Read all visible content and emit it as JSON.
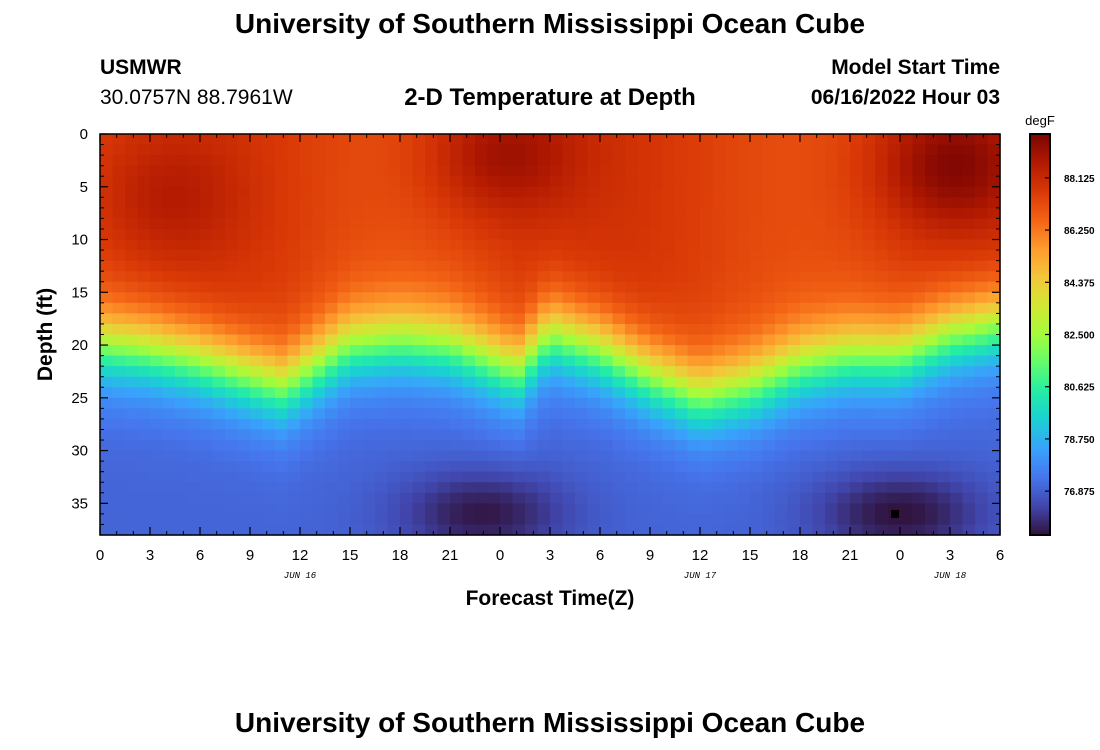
{
  "page": {
    "title": "University of Southern Mississippi Ocean Cube",
    "station": "USMWR",
    "coords": "30.0757N  88.7961W",
    "subtitle": "2-D Temperature at Depth",
    "model_start_label": "Model Start Time",
    "model_start_value": "06/16/2022 Hour 03",
    "bottom_title": "University of Southern Mississippi Ocean Cube"
  },
  "chart_data": {
    "type": "heatmap",
    "title": "2-D Temperature at Depth",
    "xlabel": "Forecast Time(Z)",
    "ylabel": "Depth (ft)",
    "x_range_hours": [
      0,
      54
    ],
    "x_tick_labels": [
      "0",
      "3",
      "6",
      "9",
      "12",
      "15",
      "18",
      "21",
      "0",
      "3",
      "6",
      "9",
      "12",
      "15",
      "18",
      "21",
      "0",
      "3",
      "6"
    ],
    "date_labels": [
      {
        "label": "JUN 16",
        "hour": 12
      },
      {
        "label": "JUN 17",
        "hour": 36
      },
      {
        "label": "JUN 18",
        "hour": 51
      }
    ],
    "ylim": [
      0,
      38
    ],
    "y_ticks": [
      0,
      5,
      10,
      15,
      20,
      25,
      30,
      35
    ],
    "colorbar": {
      "unit": "degF",
      "range": [
        75.3,
        89.7
      ],
      "ticks": [
        "88.125",
        "86.250",
        "84.375",
        "82.500",
        "80.625",
        "78.750",
        "76.875"
      ]
    },
    "thermocline_depth_ft": [
      {
        "hour": 0,
        "depth": 20
      },
      {
        "hour": 3,
        "depth": 20.5
      },
      {
        "hour": 6,
        "depth": 21.5
      },
      {
        "hour": 9,
        "depth": 23
      },
      {
        "hour": 11,
        "depth": 24
      },
      {
        "hour": 13,
        "depth": 22
      },
      {
        "hour": 15,
        "depth": 20
      },
      {
        "hour": 18,
        "depth": 19.5
      },
      {
        "hour": 21,
        "depth": 20
      },
      {
        "hour": 25,
        "depth": 22.5
      },
      {
        "hour": 27,
        "depth": 19
      },
      {
        "hour": 30,
        "depth": 20.5
      },
      {
        "hour": 33,
        "depth": 23
      },
      {
        "hour": 36,
        "depth": 25
      },
      {
        "hour": 39,
        "depth": 24
      },
      {
        "hour": 42,
        "depth": 22
      },
      {
        "hour": 45,
        "depth": 21
      },
      {
        "hour": 48,
        "depth": 21
      },
      {
        "hour": 51,
        "depth": 19
      },
      {
        "hour": 54,
        "depth": 18
      }
    ],
    "warm_cores": [
      {
        "hour": 4,
        "depth": 6,
        "temp": 88.3
      },
      {
        "hour": 24,
        "depth": 2,
        "temp": 89.0
      },
      {
        "hour": 51,
        "depth": 3,
        "temp": 89.3
      }
    ],
    "cold_cores": [
      {
        "hour": 23,
        "depth": 36,
        "temp": 75.4
      },
      {
        "hour": 48,
        "depth": 36,
        "temp": 75.3
      }
    ],
    "surface_temp_degF": 87.5,
    "bottom_temp_degF": 77.0,
    "marker": {
      "hour": 47.7,
      "depth": 36
    }
  },
  "colors": {
    "colormap": [
      "#30123b",
      "#4145ab",
      "#4675ed",
      "#39a2fc",
      "#1bcfd4",
      "#24eca6",
      "#61fc6c",
      "#a4fc3b",
      "#d1e834",
      "#f3c63a",
      "#fe9b2d",
      "#f36315",
      "#d93806",
      "#b11901",
      "#7a0402"
    ],
    "text": "#000000",
    "marker": "#000000"
  }
}
